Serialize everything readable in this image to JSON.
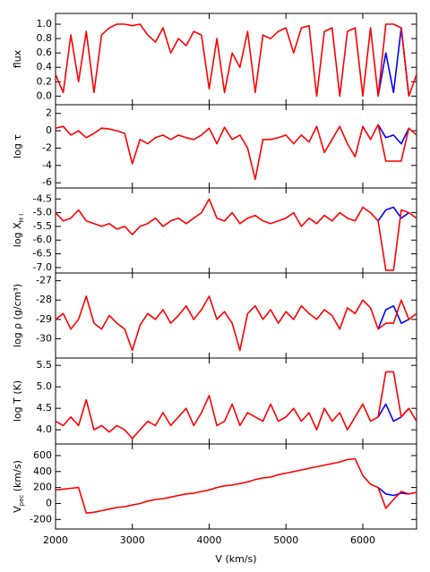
{
  "chart_data": [
    {
      "type": "line",
      "ylabel": "flux",
      "xlim": [
        2000,
        6700
      ],
      "ylim": [
        -0.12,
        1.15
      ],
      "yticks": [
        {
          "value": 0,
          "label": "0.0"
        },
        {
          "value": 0.2,
          "label": "0.2"
        },
        {
          "value": 0.4,
          "label": "0.4"
        },
        {
          "value": 0.6,
          "label": "0.6"
        },
        {
          "value": 0.8,
          "label": "0.8"
        },
        {
          "value": 1,
          "label": "1.0"
        }
      ],
      "x": [
        2000,
        2100,
        2200,
        2300,
        2400,
        2500,
        2600,
        2700,
        2800,
        2900,
        3000,
        3100,
        3200,
        3300,
        3400,
        3500,
        3600,
        3700,
        3800,
        3900,
        4000,
        4100,
        4200,
        4300,
        4400,
        4500,
        4600,
        4700,
        4800,
        4900,
        5000,
        5100,
        5200,
        5300,
        5400,
        5500,
        5600,
        5700,
        5800,
        5900,
        6000,
        6100,
        6200,
        6300,
        6400,
        6500,
        6600,
        6700
      ],
      "series": [
        {
          "color": "#0000ff",
          "x": [
            6200,
            6300,
            6400,
            6500,
            6600
          ],
          "values": [
            0.0,
            0.6,
            0.05,
            0.95,
            0.0
          ]
        },
        {
          "color": "#ff0000",
          "values": [
            0.3,
            0.05,
            0.85,
            0.2,
            0.9,
            0.05,
            0.85,
            0.95,
            1.0,
            1.0,
            0.98,
            1.0,
            0.85,
            0.75,
            0.95,
            0.6,
            0.8,
            0.7,
            0.9,
            0.85,
            0.1,
            0.8,
            0.05,
            0.6,
            0.4,
            0.9,
            0.05,
            0.85,
            0.8,
            0.9,
            0.95,
            0.6,
            0.95,
            0.98,
            0.0,
            0.9,
            0.95,
            0.0,
            0.9,
            0.95,
            0.0,
            0.95,
            0.0,
            1.0,
            1.0,
            0.95,
            0.0,
            0.3
          ]
        }
      ]
    },
    {
      "type": "line",
      "ylabel": "log τ",
      "xlim": [
        2000,
        6700
      ],
      "ylim": [
        -6.6,
        3.0
      ],
      "yticks": [
        2,
        0,
        -2,
        -4,
        -6
      ],
      "x": [
        2000,
        2100,
        2200,
        2300,
        2400,
        2500,
        2600,
        2700,
        2800,
        2900,
        3000,
        3100,
        3200,
        3300,
        3400,
        3500,
        3600,
        3700,
        3800,
        3900,
        4000,
        4100,
        4200,
        4300,
        4400,
        4500,
        4600,
        4700,
        4800,
        4900,
        5000,
        5100,
        5200,
        5300,
        5400,
        5500,
        5600,
        5700,
        5800,
        5900,
        6000,
        6100,
        6200,
        6300,
        6400,
        6500,
        6600,
        6700
      ],
      "series": [
        {
          "color": "#0000ff",
          "x": [
            6200,
            6300,
            6400,
            6500,
            6600
          ],
          "values": [
            0.7,
            -0.8,
            -0.5,
            -1.5,
            0.3
          ]
        },
        {
          "color": "#ff0000",
          "values": [
            0.3,
            0.5,
            -0.5,
            0,
            -0.8,
            -0.3,
            0.3,
            0.2,
            0,
            -0.3,
            -3.8,
            -1.0,
            -1.5,
            -0.8,
            -0.5,
            -1.0,
            -0.5,
            -0.8,
            -1.0,
            -0.5,
            0.3,
            -1.5,
            0.4,
            -1.0,
            -0.5,
            -2.0,
            -5.6,
            -1.0,
            -1.0,
            -0.8,
            -0.5,
            -1.5,
            -0.5,
            -1.3,
            0.5,
            -2.5,
            -1.0,
            0.5,
            -1.5,
            -3.0,
            0.5,
            -1.0,
            0.7,
            -3.5,
            -3.5,
            -3.5,
            0.3,
            -0.5
          ]
        }
      ]
    },
    {
      "type": "line",
      "ylabel": "log X",
      "ylabel_sub": "H I",
      "xlim": [
        2000,
        6700
      ],
      "ylim": [
        -7.2,
        -4.1
      ],
      "yticks": [
        -4.5,
        {
          "value": -5,
          "label": "-5.0"
        },
        -5.5,
        {
          "value": -6,
          "label": "-6.0"
        },
        -6.5,
        {
          "value": -7,
          "label": "-7.0"
        }
      ],
      "x": [
        2000,
        2100,
        2200,
        2300,
        2400,
        2500,
        2600,
        2700,
        2800,
        2900,
        3000,
        3100,
        3200,
        3300,
        3400,
        3500,
        3600,
        3700,
        3800,
        3900,
        4000,
        4100,
        4200,
        4300,
        4400,
        4500,
        4600,
        4700,
        4800,
        4900,
        5000,
        5100,
        5200,
        5300,
        5400,
        5500,
        5600,
        5700,
        5800,
        5900,
        6000,
        6100,
        6200,
        6300,
        6400,
        6500,
        6600,
        6700
      ],
      "series": [
        {
          "color": "#0000ff",
          "x": [
            6200,
            6300,
            6400,
            6500,
            6600
          ],
          "values": [
            -5.3,
            -4.9,
            -4.8,
            -5.2,
            -5.0
          ]
        },
        {
          "color": "#ff0000",
          "values": [
            -5.0,
            -5.3,
            -5.2,
            -4.9,
            -5.3,
            -5.4,
            -5.5,
            -5.4,
            -5.6,
            -5.5,
            -5.8,
            -5.5,
            -5.4,
            -5.2,
            -5.5,
            -5.3,
            -5.2,
            -5.4,
            -5.2,
            -5.0,
            -4.5,
            -5.2,
            -5.3,
            -5.0,
            -5.4,
            -5.2,
            -5.1,
            -5.3,
            -5.4,
            -5.3,
            -5.2,
            -5.0,
            -5.5,
            -5.2,
            -5.4,
            -5.1,
            -5.3,
            -5.0,
            -5.2,
            -5.3,
            -4.8,
            -5.0,
            -5.3,
            -7.1,
            -7.1,
            -4.9,
            -5.0,
            -5.2
          ]
        }
      ]
    },
    {
      "type": "line",
      "ylabel": "log ρ (g/cm³)",
      "xlim": [
        2000,
        6700
      ],
      "ylim": [
        -31.0,
        -26.6
      ],
      "yticks": [
        -27,
        -28,
        -29,
        -30
      ],
      "x": [
        2000,
        2100,
        2200,
        2300,
        2400,
        2500,
        2600,
        2700,
        2800,
        2900,
        3000,
        3100,
        3200,
        3300,
        3400,
        3500,
        3600,
        3700,
        3800,
        3900,
        4000,
        4100,
        4200,
        4300,
        4400,
        4500,
        4600,
        4700,
        4800,
        4900,
        5000,
        5100,
        5200,
        5300,
        5400,
        5500,
        5600,
        5700,
        5800,
        5900,
        6000,
        6100,
        6200,
        6300,
        6400,
        6500,
        6600,
        6700
      ],
      "series": [
        {
          "color": "#0000ff",
          "x": [
            6200,
            6300,
            6400,
            6500,
            6600
          ],
          "values": [
            -29.5,
            -28.5,
            -28.3,
            -29.2,
            -29.0
          ]
        },
        {
          "color": "#ff0000",
          "values": [
            -29,
            -28.7,
            -29.5,
            -29,
            -27.8,
            -29.2,
            -29.5,
            -28.8,
            -29.2,
            -29.5,
            -30.6,
            -29.3,
            -28.7,
            -29.0,
            -28.5,
            -29.2,
            -28.8,
            -28.3,
            -29.0,
            -28.5,
            -27.8,
            -29.0,
            -28.6,
            -29.2,
            -30.6,
            -28.7,
            -28.3,
            -29.0,
            -28.5,
            -29.2,
            -28.6,
            -29.0,
            -28.3,
            -28.7,
            -29.0,
            -28.5,
            -28.8,
            -29.5,
            -28.4,
            -28.7,
            -28.0,
            -28.4,
            -29.5,
            -29.2,
            -29.2,
            -28.0,
            -29.0,
            -28.7
          ]
        }
      ]
    },
    {
      "type": "line",
      "ylabel": "log T (K)",
      "xlim": [
        2000,
        6700
      ],
      "ylim": [
        3.67,
        5.67
      ],
      "yticks": [
        {
          "value": 4,
          "label": "4.0"
        },
        4.5,
        {
          "value": 5,
          "label": "5.0"
        },
        5.5
      ],
      "x": [
        2000,
        2100,
        2200,
        2300,
        2400,
        2500,
        2600,
        2700,
        2800,
        2900,
        3000,
        3100,
        3200,
        3300,
        3400,
        3500,
        3600,
        3700,
        3800,
        3900,
        4000,
        4100,
        4200,
        4300,
        4400,
        4500,
        4600,
        4700,
        4800,
        4900,
        5000,
        5100,
        5200,
        5300,
        5400,
        5500,
        5600,
        5700,
        5800,
        5900,
        6000,
        6100,
        6200,
        6300,
        6400,
        6500,
        6600,
        6700
      ],
      "series": [
        {
          "color": "#0000ff",
          "x": [
            6200,
            6300,
            6400,
            6500,
            6600
          ],
          "values": [
            4.3,
            4.6,
            4.2,
            4.3,
            4.5
          ]
        },
        {
          "color": "#ff0000",
          "values": [
            4.2,
            4.1,
            4.3,
            4.1,
            4.7,
            4.0,
            4.1,
            3.95,
            4.1,
            4.0,
            3.8,
            4.0,
            4.2,
            4.1,
            4.4,
            4.1,
            4.3,
            4.5,
            4.1,
            4.4,
            4.8,
            4.1,
            4.2,
            4.6,
            4.1,
            4.4,
            4.3,
            4.2,
            4.6,
            4.2,
            4.3,
            4.5,
            4.2,
            4.4,
            4.0,
            4.5,
            4.2,
            4.4,
            4.0,
            4.3,
            4.6,
            4.2,
            4.3,
            5.35,
            5.35,
            4.3,
            4.5,
            4.2
          ]
        }
      ]
    },
    {
      "type": "line",
      "ylabel": "V",
      "ylabel_sub": "pec",
      "ylabel_tail": " (km/s)",
      "xlabel": "V (km/s)",
      "xlim": [
        2000,
        6700
      ],
      "xticks": [
        2000,
        3000,
        4000,
        5000,
        6000
      ],
      "ylim": [
        -320,
        745
      ],
      "yticks": [
        -200,
        0,
        200,
        400,
        600
      ],
      "x": [
        2000,
        2100,
        2200,
        2300,
        2400,
        2500,
        2600,
        2700,
        2800,
        2900,
        3000,
        3100,
        3200,
        3300,
        3400,
        3500,
        3600,
        3700,
        3800,
        3900,
        4000,
        4100,
        4200,
        4300,
        4400,
        4500,
        4600,
        4700,
        4800,
        4900,
        5000,
        5100,
        5200,
        5300,
        5400,
        5500,
        5600,
        5700,
        5800,
        5900,
        6000,
        6100,
        6200,
        6300,
        6400,
        6500,
        6600,
        6700
      ],
      "series": [
        {
          "color": "#0000ff",
          "x": [
            6200,
            6300,
            6400,
            6500,
            6600
          ],
          "values": [
            200,
            120,
            100,
            130,
            120
          ]
        },
        {
          "color": "#ff0000",
          "values": [
            170,
            180,
            190,
            200,
            -120,
            -110,
            -90,
            -70,
            -50,
            -40,
            -20,
            0,
            30,
            50,
            60,
            80,
            100,
            120,
            130,
            150,
            170,
            200,
            220,
            230,
            250,
            270,
            300,
            320,
            330,
            360,
            380,
            400,
            420,
            440,
            460,
            480,
            500,
            520,
            550,
            560,
            350,
            240,
            200,
            -60,
            50,
            150,
            120,
            140
          ]
        }
      ]
    }
  ]
}
